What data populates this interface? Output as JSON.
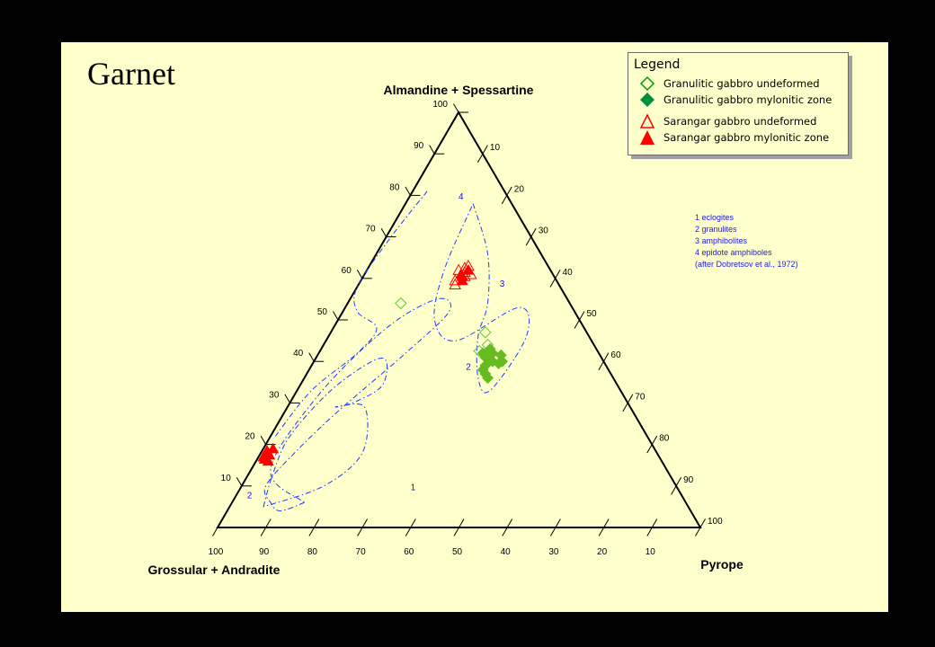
{
  "page": {
    "title": "Garnet",
    "background": "#000000",
    "slide_color": "#ffffcc"
  },
  "legend": {
    "title": "Legend",
    "items": [
      {
        "label": "Granulitic gabbro undeformed",
        "marker": "diamond-open-icon",
        "color": "#00a000"
      },
      {
        "label": "Granulitic gabbro mylonitic zone",
        "marker": "diamond-filled-icon",
        "color": "#008f3a"
      },
      {
        "label": "Sarangar gabbro undeformed",
        "marker": "triangle-open-icon",
        "color": "#ff0000"
      },
      {
        "label": "Sarangar gabbro mylonitic zone",
        "marker": "triangle-filled-icon",
        "color": "#ff0000"
      }
    ]
  },
  "notes": [
    "1 eclogites",
    "2 granulites",
    "3 amphibolites",
    "4 epidote amphiboles",
    "(after Dobretsov et al., 1972)"
  ],
  "chart_data": {
    "type": "ternary",
    "title": "Garnet",
    "apex_labels": {
      "top": "Almandine  + Spessartine",
      "left": "Grossular  + Andradite",
      "right": "Pyrope"
    },
    "axes": {
      "top_component": {
        "ticks": [
          10,
          20,
          30,
          40,
          50,
          60,
          70,
          80,
          90,
          100
        ],
        "labels_side": "left"
      },
      "right_component": {
        "ticks": [
          10,
          20,
          30,
          40,
          50,
          60,
          70,
          80,
          90,
          100
        ],
        "labels_side": "right"
      },
      "left_component": {
        "ticks": [
          100,
          90,
          80,
          70,
          60,
          50,
          40,
          30,
          20,
          10
        ],
        "labels_side": "bottom"
      }
    },
    "grid": false,
    "legend_position": "top-right",
    "fields": [
      {
        "label": "1",
        "name": "eclogites",
        "color": "#1a3cff",
        "label_at": [
          9,
          36,
          55
        ],
        "boundary": [
          [
            6,
            15,
            79
          ],
          [
            4,
            11,
            85
          ],
          [
            6,
            8,
            86
          ],
          [
            10,
            5,
            85
          ],
          [
            18,
            7,
            75
          ],
          [
            28,
            11,
            61
          ],
          [
            42,
            18,
            40
          ],
          [
            52,
            22,
            26
          ],
          [
            55,
            18,
            27
          ],
          [
            48,
            11,
            41
          ],
          [
            32,
            5,
            63
          ],
          [
            14,
            4,
            82
          ],
          [
            6,
            15,
            79
          ]
        ]
      },
      {
        "label": "2",
        "name": "granulites",
        "color": "#1a3cff",
        "label_at": [
          38,
          33,
          29
        ],
        "boundary": [
          [
            5,
            7,
            88
          ],
          [
            13,
            5,
            82
          ],
          [
            22,
            4,
            74
          ],
          [
            33,
            7,
            60
          ],
          [
            40,
            12,
            48
          ],
          [
            40,
            15,
            45
          ],
          [
            34,
            17,
            49
          ],
          [
            30,
            13,
            57
          ],
          [
            29,
            10,
            61
          ],
          [
            29,
            16,
            55
          ],
          [
            18,
            21,
            61
          ],
          [
            10,
            17,
            73
          ],
          [
            5,
            7,
            88
          ]
        ]
      },
      {
        "label": "3",
        "name": "amphibolites",
        "color": "#1a3cff",
        "label_at": [
          58,
          30,
          12
        ],
        "boundary": [
          [
            78,
            14,
            8
          ],
          [
            66,
            23,
            11
          ],
          [
            54,
            29,
            17
          ],
          [
            46,
            31,
            23
          ],
          [
            36,
            36,
            28
          ],
          [
            33,
            40,
            27
          ],
          [
            46,
            41,
            13
          ],
          [
            53,
            36,
            11
          ],
          [
            45,
            27,
            28
          ],
          [
            50,
            20,
            30
          ],
          [
            62,
            16,
            22
          ],
          [
            78,
            14,
            8
          ]
        ]
      },
      {
        "label": "4",
        "name": "epidote amphiboles",
        "color": "#1a3cff",
        "label_at": [
          79,
          11,
          10
        ],
        "boundary": [
          [
            81,
            3,
            16
          ],
          [
            70,
            1,
            29
          ],
          [
            58,
            0,
            42
          ],
          [
            52,
            3,
            45
          ],
          [
            48,
            9,
            43
          ],
          [
            42,
            8,
            50
          ],
          [
            33,
            3,
            64
          ],
          [
            22,
            1,
            77
          ]
        ]
      }
    ],
    "series": [
      {
        "name": "Sarangar gabbro undeformed",
        "marker": "triangle-open",
        "color": "#ff0000",
        "points": [
          [
            61.5,
            20.5,
            18
          ],
          [
            62.5,
            20,
            17.5
          ],
          [
            60.5,
            21,
            18.5
          ],
          [
            59.5,
            19.5,
            21
          ],
          [
            63,
            20.5,
            16.5
          ],
          [
            61,
            22,
            17
          ],
          [
            58.5,
            20,
            21.5
          ],
          [
            62,
            19,
            19
          ]
        ]
      },
      {
        "name": "Sarangar gabbro mylonitic zone",
        "marker": "triangle-filled",
        "color": "#ff0000",
        "points": [
          [
            61,
            20,
            19
          ],
          [
            60.5,
            20.5,
            19
          ],
          [
            62,
            21,
            17
          ],
          [
            59.5,
            21,
            19.5
          ],
          [
            18,
            1.5,
            80.5
          ],
          [
            17.5,
            2,
            80.5
          ],
          [
            16.5,
            1.5,
            82
          ],
          [
            19,
            2,
            79
          ],
          [
            16,
            2.5,
            81.5
          ],
          [
            18.5,
            1,
            80.5
          ],
          [
            17,
            1,
            82
          ]
        ]
      },
      {
        "name": "Granulitic gabbro undeformed",
        "marker": "diamond-open",
        "color": "#5fcc32",
        "points": [
          [
            54,
            11,
            35
          ],
          [
            47,
            32,
            21
          ],
          [
            42.5,
            33,
            24.5
          ],
          [
            44,
            34,
            22
          ]
        ]
      },
      {
        "name": "Granulitic gabbro mylonitic zone",
        "marker": "diamond-filled",
        "color": "#66bb22",
        "points": [
          [
            42,
            34,
            24
          ],
          [
            41,
            35,
            24
          ],
          [
            40,
            37,
            23
          ],
          [
            39,
            36,
            25
          ],
          [
            43,
            35,
            22
          ],
          [
            41.5,
            38,
            20.5
          ],
          [
            38,
            36,
            26
          ],
          [
            37,
            37,
            26
          ],
          [
            40,
            39,
            21
          ],
          [
            42,
            36,
            22
          ],
          [
            39.5,
            38.5,
            22
          ],
          [
            36,
            38,
            26
          ]
        ]
      }
    ]
  }
}
